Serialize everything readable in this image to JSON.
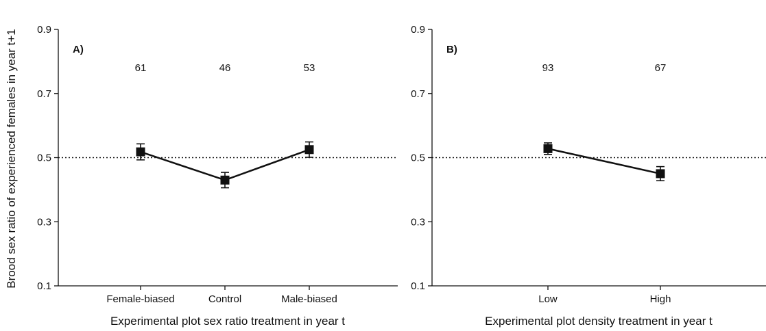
{
  "figure": {
    "ylabel": "Brood sex ratio of experienced females in year t+1"
  },
  "chart_data": [
    {
      "type": "line",
      "panel_label": "A)",
      "xlabel": "Experimental plot sex ratio treatment in year t",
      "ylabel": "Brood sex ratio of experienced females in year t+1",
      "ylim": [
        0.1,
        0.9
      ],
      "yticks": [
        "0.1",
        "0.3",
        "0.5",
        "0.7",
        "0.9"
      ],
      "categories": [
        "Female-biased",
        "Control",
        "Male-biased"
      ],
      "values": [
        0.518,
        0.43,
        0.525
      ],
      "error": [
        0.025,
        0.024,
        0.024
      ],
      "sample_sizes": [
        "61",
        "46",
        "53"
      ],
      "reference_line": 0.5,
      "grid": false
    },
    {
      "type": "line",
      "panel_label": "B)",
      "xlabel": "Experimental plot density treatment in year t",
      "ylim": [
        0.1,
        0.9
      ],
      "yticks": [
        "0.1",
        "0.3",
        "0.5",
        "0.7",
        "0.9"
      ],
      "categories": [
        "Low",
        "High"
      ],
      "values": [
        0.528,
        0.45
      ],
      "error": [
        0.018,
        0.022
      ],
      "sample_sizes": [
        "93",
        "67"
      ],
      "reference_line": 0.5,
      "grid": false
    }
  ]
}
